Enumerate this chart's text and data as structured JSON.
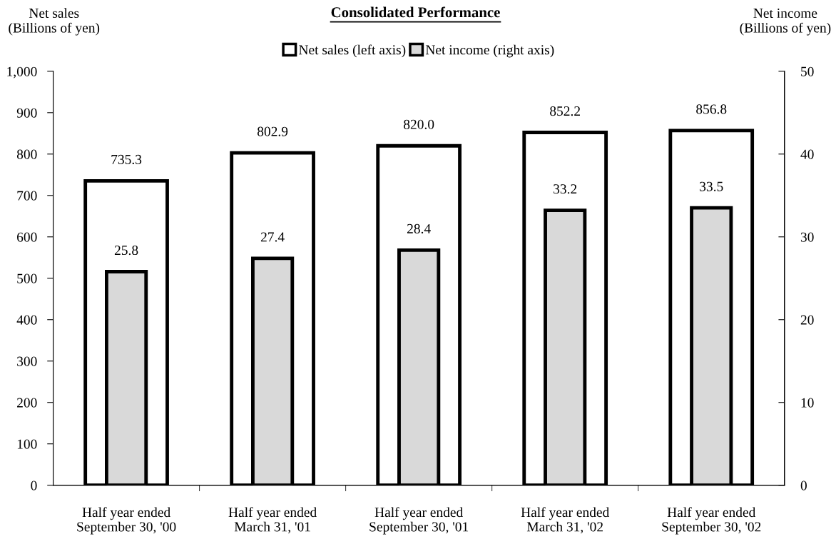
{
  "chart_data": {
    "type": "bar",
    "title": "Consolidated Performance",
    "ylabel": "Net sales\n(Billions of yen)",
    "y2label": "Net income\n(Billions of yen)",
    "categories": [
      "Half year ended\nSeptember 30, '00",
      "Half year ended\nMarch 31, '01",
      "Half year ended\nSeptember 30, '01",
      "Half year ended\nMarch 31, '02",
      "Half year ended\nSeptember 30, '02"
    ],
    "series": [
      {
        "name": "Net sales (left axis)",
        "color": "#ffffff",
        "values": [
          735.3,
          802.9,
          820.0,
          852.2,
          856.8
        ],
        "value_labels": [
          "735.3",
          "802.9",
          "820.0",
          "852.2",
          "856.8"
        ]
      },
      {
        "name": "Net income (right axis)",
        "color": "#d9d9d9",
        "axis": "y2",
        "values": [
          25.8,
          27.4,
          28.4,
          33.2,
          33.5
        ],
        "value_labels": [
          "25.8",
          "27.4",
          "28.4",
          "33.2",
          "33.5"
        ]
      }
    ],
    "ylim": [
      0,
      1000
    ],
    "yticks": [
      0,
      {
        "value": 100,
        "label": "100"
      },
      {
        "value": 200,
        "label": "200"
      },
      {
        "value": 300,
        "label": "300"
      },
      {
        "value": 400,
        "label": "400"
      },
      {
        "value": 500,
        "label": "500"
      },
      {
        "value": 600,
        "label": "600"
      },
      {
        "value": 700,
        "label": "700"
      },
      {
        "value": 800,
        "label": "800"
      },
      {
        "value": 900,
        "label": "900"
      },
      {
        "value": 1000,
        "label": "1,000"
      }
    ],
    "y2lim": [
      0,
      50
    ],
    "y2ticks": [
      0,
      10,
      20,
      30,
      40,
      50
    ],
    "legend": "top",
    "grid": false
  }
}
